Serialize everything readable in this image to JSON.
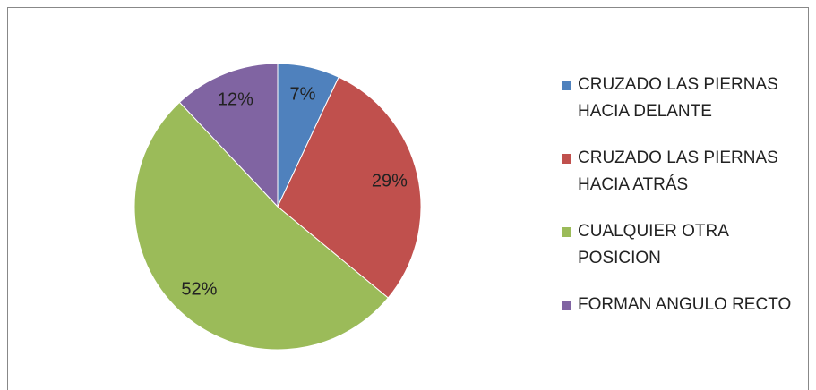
{
  "chart_data": {
    "type": "pie",
    "categories": [
      "CRUZADO LAS PIERNAS HACIA DELANTE",
      "CRUZADO LAS PIERNAS HACIA ATRÁS",
      "CUALQUIER OTRA POSICION",
      "FORMAN ANGULO RECTO"
    ],
    "values": [
      7,
      29,
      52,
      12
    ],
    "value_labels": [
      "7%",
      "29%",
      "52%",
      "12%"
    ],
    "colors": [
      "#4f81bd",
      "#c0504d",
      "#9bbb59",
      "#8064a2"
    ],
    "legend": "right"
  }
}
